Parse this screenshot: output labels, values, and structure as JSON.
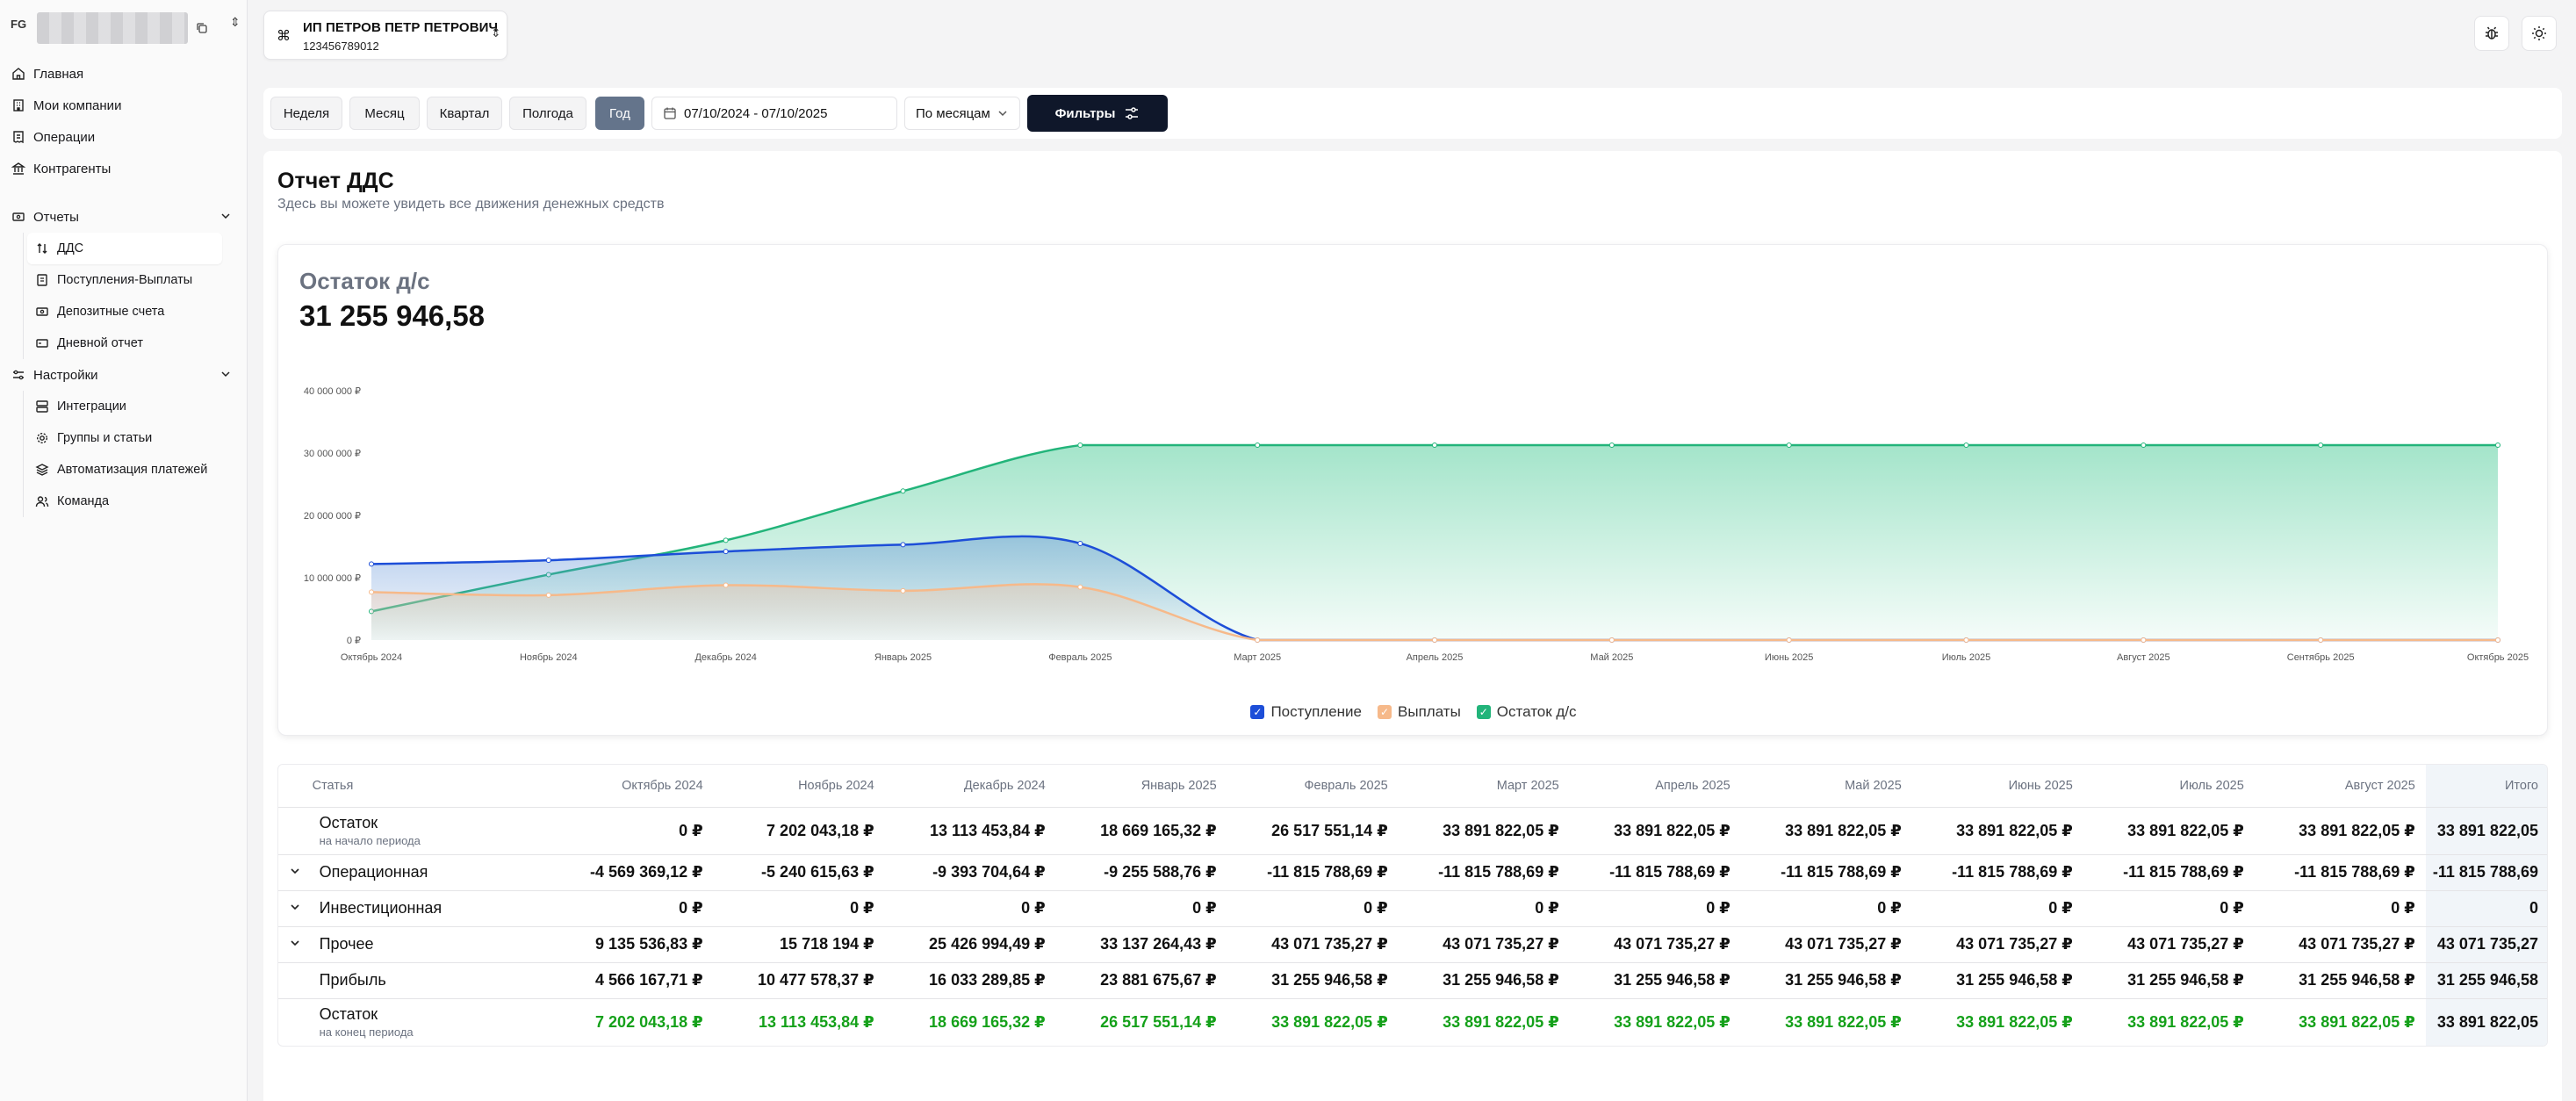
{
  "sidebar": {
    "workspace_badge": "FG",
    "nav": [
      {
        "label": "Главная",
        "icon": "home-icon"
      },
      {
        "label": "Мои компании",
        "icon": "building-icon"
      },
      {
        "label": "Операции",
        "icon": "receipt-icon"
      },
      {
        "label": "Контрагенты",
        "icon": "bank-icon"
      }
    ],
    "reports": {
      "label": "Отчеты",
      "items": [
        {
          "label": "ДДС",
          "icon": "arrows-up-down-icon",
          "active": true
        },
        {
          "label": "Поступления-Выплаты",
          "icon": "document-icon"
        },
        {
          "label": "Депозитные счета",
          "icon": "wallet-icon"
        },
        {
          "label": "Дневной отчет",
          "icon": "card-icon"
        }
      ]
    },
    "settings": {
      "label": "Настройки",
      "items": [
        {
          "label": "Интеграции",
          "icon": "server-icon"
        },
        {
          "label": "Группы и статьи",
          "icon": "cog-icon"
        },
        {
          "label": "Автоматизация платежей",
          "icon": "layers-icon"
        },
        {
          "label": "Команда",
          "icon": "users-icon"
        }
      ]
    }
  },
  "company": {
    "name": "ИП ПЕТРОВ ПЕТР ПЕТРОВИЧ",
    "inn": "123456789012"
  },
  "toolbar": {
    "periods": [
      "Неделя",
      "Месяц",
      "Квартал",
      "Полгода",
      "Год"
    ],
    "active_period": "Год",
    "date_range": "07/10/2024 - 07/10/2025",
    "grouping": "По месяцам",
    "filters_label": "Фильтры"
  },
  "page": {
    "title": "Отчет ДДС",
    "subtitle": "Здесь вы можете увидеть все движения денежных средств"
  },
  "chart_header": {
    "label": "Остаток д/с",
    "value": "31 255 946,58"
  },
  "chart_data": {
    "type": "area",
    "categories": [
      "Октябрь 2024",
      "Ноябрь 2024",
      "Декабрь 2024",
      "Январь 2025",
      "Февраль 2025",
      "Март 2025",
      "Апрель 2025",
      "Май 2025",
      "Июнь 2025",
      "Июль 2025",
      "Август 2025",
      "Сентябрь 2025",
      "Октябрь 2025"
    ],
    "y_ticks": [
      "0 ₽",
      "10 000 000 ₽",
      "20 000 000 ₽",
      "30 000 000 ₽",
      "40 000 000 ₽"
    ],
    "ylim": [
      0,
      40000000
    ],
    "series": [
      {
        "name": "Поступление",
        "color": "#1d4ed8",
        "values": [
          12200000,
          12800000,
          14200000,
          15300000,
          15500000,
          0,
          0,
          0,
          0,
          0,
          0,
          0,
          0
        ]
      },
      {
        "name": "Выплаты",
        "color": "#f6b98a",
        "values": [
          7700000,
          7200000,
          8800000,
          7900000,
          8500000,
          0,
          0,
          0,
          0,
          0,
          0,
          0,
          0
        ]
      },
      {
        "name": "Остаток д/с",
        "color": "#22b47a",
        "values": [
          4600000,
          10500000,
          16000000,
          23900000,
          31260000,
          31260000,
          31260000,
          31260000,
          31260000,
          31260000,
          31260000,
          31260000,
          31260000
        ]
      }
    ],
    "legend_position": "bottom-center",
    "grid": false
  },
  "table": {
    "headers": [
      "Статья",
      "Октябрь 2024",
      "Ноябрь 2024",
      "Декабрь 2024",
      "Январь 2025",
      "Февраль 2025",
      "Март 2025",
      "Апрель 2025",
      "Май 2025",
      "Июнь 2025",
      "Июль 2025",
      "Август 2025",
      "Итого"
    ],
    "rows": [
      {
        "name": "Остаток",
        "sub": "на начало периода",
        "expand": false,
        "green": false,
        "cls": "r-tall",
        "values": [
          "0 ₽",
          "7 202 043,18 ₽",
          "13 113 453,84 ₽",
          "18 669 165,32 ₽",
          "26 517 551,14 ₽",
          "33 891 822,05 ₽",
          "33 891 822,05 ₽",
          "33 891 822,05 ₽",
          "33 891 822,05 ₽",
          "33 891 822,05 ₽",
          "33 891 822,05 ₽",
          "33 891 822,05"
        ]
      },
      {
        "name": "Операционная",
        "sub": "",
        "expand": true,
        "green": false,
        "cls": "r-mid",
        "values": [
          "-4 569 369,12 ₽",
          "-5 240 615,63 ₽",
          "-9 393 704,64 ₽",
          "-9 255 588,76 ₽",
          "-11 815 788,69 ₽",
          "-11 815 788,69 ₽",
          "-11 815 788,69 ₽",
          "-11 815 788,69 ₽",
          "-11 815 788,69 ₽",
          "-11 815 788,69 ₽",
          "-11 815 788,69 ₽",
          "-11 815 788,69"
        ]
      },
      {
        "name": "Инвестиционная",
        "sub": "",
        "expand": true,
        "green": false,
        "cls": "r-mid",
        "values": [
          "0 ₽",
          "0 ₽",
          "0 ₽",
          "0 ₽",
          "0 ₽",
          "0 ₽",
          "0 ₽",
          "0 ₽",
          "0 ₽",
          "0 ₽",
          "0 ₽",
          "0"
        ]
      },
      {
        "name": "Прочее",
        "sub": "",
        "expand": true,
        "green": false,
        "cls": "r-mid",
        "values": [
          "9 135 536,83 ₽",
          "15 718 194 ₽",
          "25 426 994,49 ₽",
          "33 137 264,43 ₽",
          "43 071 735,27 ₽",
          "43 071 735,27 ₽",
          "43 071 735,27 ₽",
          "43 071 735,27 ₽",
          "43 071 735,27 ₽",
          "43 071 735,27 ₽",
          "43 071 735,27 ₽",
          "43 071 735,27"
        ]
      },
      {
        "name": "Прибыль",
        "sub": "",
        "expand": false,
        "green": false,
        "cls": "r-mid",
        "values": [
          "4 566 167,71 ₽",
          "10 477 578,37 ₽",
          "16 033 289,85 ₽",
          "23 881 675,67 ₽",
          "31 255 946,58 ₽",
          "31 255 946,58 ₽",
          "31 255 946,58 ₽",
          "31 255 946,58 ₽",
          "31 255 946,58 ₽",
          "31 255 946,58 ₽",
          "31 255 946,58 ₽",
          "31 255 946,58"
        ]
      },
      {
        "name": "Остаток",
        "sub": "на конец периода",
        "expand": false,
        "green": true,
        "cls": "r-end",
        "values": [
          "7 202 043,18 ₽",
          "13 113 453,84 ₽",
          "18 669 165,32 ₽",
          "26 517 551,14 ₽",
          "33 891 822,05 ₽",
          "33 891 822,05 ₽",
          "33 891 822,05 ₽",
          "33 891 822,05 ₽",
          "33 891 822,05 ₽",
          "33 891 822,05 ₽",
          "33 891 822,05 ₽",
          "33 891 822,05"
        ]
      }
    ]
  }
}
